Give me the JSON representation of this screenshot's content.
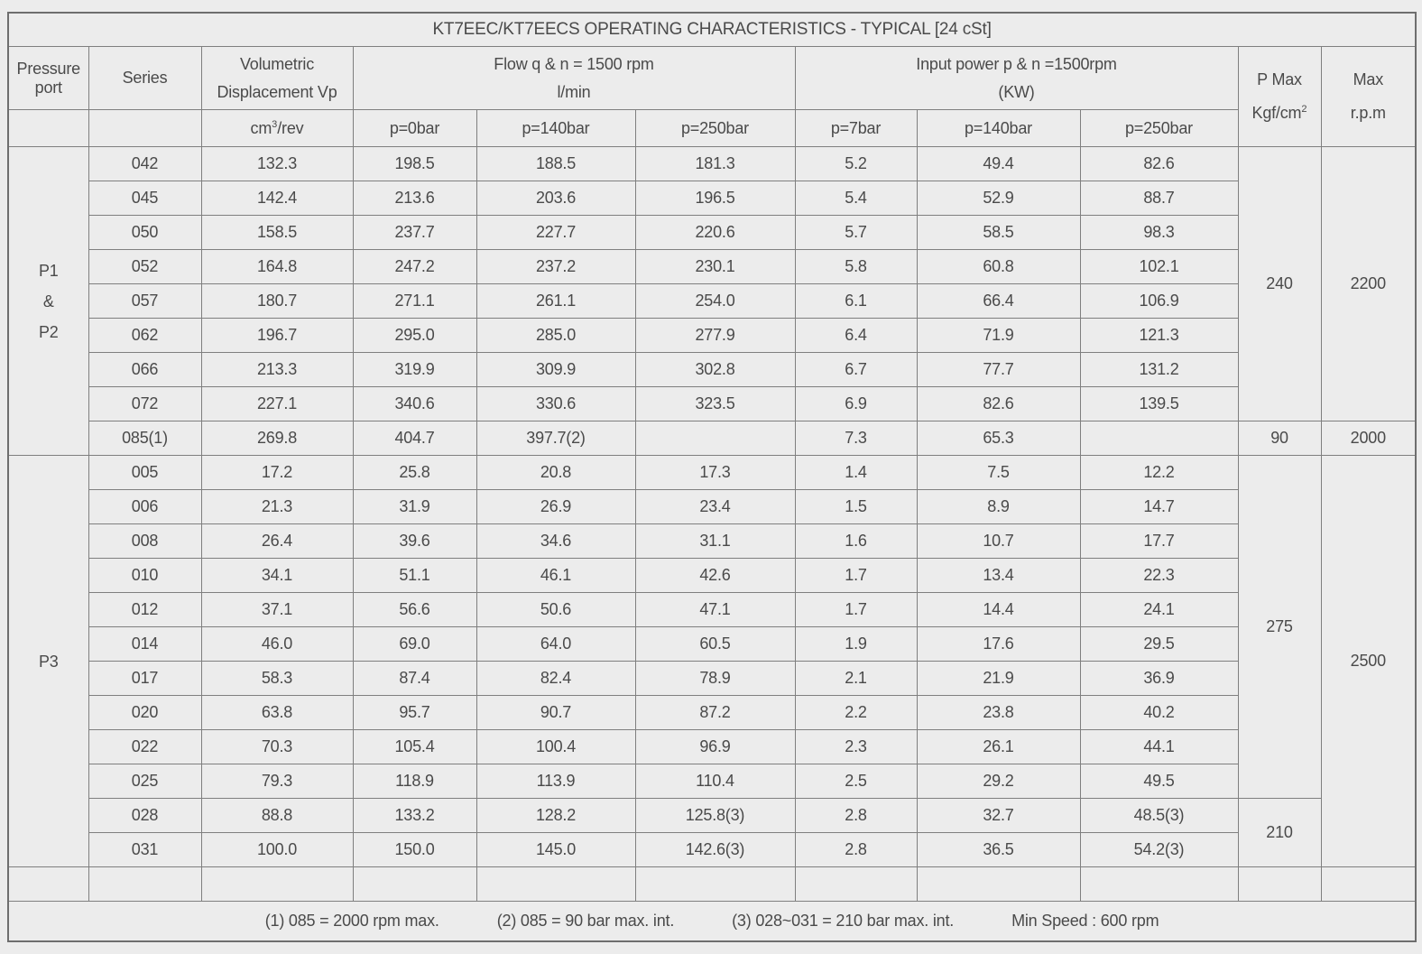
{
  "title": "KT7EEC/KT7EECS OPERATING CHARACTERISTICS - TYPICAL [24 cSt]",
  "colors": {
    "background": "#ececec",
    "grid_line": "#7f7f7f",
    "outer_border": "#6e6e6e",
    "text": "#4a4a4a"
  },
  "header": {
    "pressure_port": "Pressure port",
    "series": "Series",
    "displacement_line1": "Volumetric",
    "displacement_line2": "Displacement Vp",
    "vp_unit_pre": "cm",
    "vp_unit_sup": "3",
    "vp_unit_post": "/rev",
    "flow_line1": "Flow q & n = 1500 rpm",
    "flow_line2": "l/min",
    "power_line1": "Input power p & n =1500rpm",
    "power_line2": "(KW)",
    "flow_cols": [
      "p=0bar",
      "p=140bar",
      "p=250bar"
    ],
    "power_cols": [
      "p=7bar",
      "p=140bar",
      "p=250bar"
    ],
    "pmax_line1": "P Max",
    "pmax_unit_pre": "Kgf/cm",
    "pmax_unit_sup": "2",
    "rpm_line1": "Max",
    "rpm_line2": "r.p.m"
  },
  "sections": [
    {
      "port_lines": [
        "P1",
        "&",
        "P2"
      ],
      "rows": [
        {
          "series": "042",
          "vp": "132.3",
          "flow": [
            "198.5",
            "188.5",
            "181.3"
          ],
          "power": [
            "5.2",
            "49.4",
            "82.6"
          ]
        },
        {
          "series": "045",
          "vp": "142.4",
          "flow": [
            "213.6",
            "203.6",
            "196.5"
          ],
          "power": [
            "5.4",
            "52.9",
            "88.7"
          ]
        },
        {
          "series": "050",
          "vp": "158.5",
          "flow": [
            "237.7",
            "227.7",
            "220.6"
          ],
          "power": [
            "5.7",
            "58.5",
            "98.3"
          ]
        },
        {
          "series": "052",
          "vp": "164.8",
          "flow": [
            "247.2",
            "237.2",
            "230.1"
          ],
          "power": [
            "5.8",
            "60.8",
            "102.1"
          ]
        },
        {
          "series": "057",
          "vp": "180.7",
          "flow": [
            "271.1",
            "261.1",
            "254.0"
          ],
          "power": [
            "6.1",
            "66.4",
            "106.9"
          ]
        },
        {
          "series": "062",
          "vp": "196.7",
          "flow": [
            "295.0",
            "285.0",
            "277.9"
          ],
          "power": [
            "6.4",
            "71.9",
            "121.3"
          ]
        },
        {
          "series": "066",
          "vp": "213.3",
          "flow": [
            "319.9",
            "309.9",
            "302.8"
          ],
          "power": [
            "6.7",
            "77.7",
            "131.2"
          ]
        },
        {
          "series": "072",
          "vp": "227.1",
          "flow": [
            "340.6",
            "330.6",
            "323.5"
          ],
          "power": [
            "6.9",
            "82.6",
            "139.5"
          ]
        },
        {
          "series": "085(1)",
          "vp": "269.8",
          "flow": [
            "404.7",
            "397.7(2)",
            ""
          ],
          "power": [
            "7.3",
            "65.3",
            ""
          ]
        }
      ],
      "pmax_spans": [
        {
          "value": "240",
          "rows": 8
        },
        {
          "value": "90",
          "rows": 1
        }
      ],
      "rpm_spans": [
        {
          "value": "2200",
          "rows": 8
        },
        {
          "value": "2000",
          "rows": 1
        }
      ]
    },
    {
      "port_lines": [
        "P3"
      ],
      "rows": [
        {
          "series": "005",
          "vp": "17.2",
          "flow": [
            "25.8",
            "20.8",
            "17.3"
          ],
          "power": [
            "1.4",
            "7.5",
            "12.2"
          ]
        },
        {
          "series": "006",
          "vp": "21.3",
          "flow": [
            "31.9",
            "26.9",
            "23.4"
          ],
          "power": [
            "1.5",
            "8.9",
            "14.7"
          ]
        },
        {
          "series": "008",
          "vp": "26.4",
          "flow": [
            "39.6",
            "34.6",
            "31.1"
          ],
          "power": [
            "1.6",
            "10.7",
            "17.7"
          ]
        },
        {
          "series": "010",
          "vp": "34.1",
          "flow": [
            "51.1",
            "46.1",
            "42.6"
          ],
          "power": [
            "1.7",
            "13.4",
            "22.3"
          ]
        },
        {
          "series": "012",
          "vp": "37.1",
          "flow": [
            "56.6",
            "50.6",
            "47.1"
          ],
          "power": [
            "1.7",
            "14.4",
            "24.1"
          ]
        },
        {
          "series": "014",
          "vp": "46.0",
          "flow": [
            "69.0",
            "64.0",
            "60.5"
          ],
          "power": [
            "1.9",
            "17.6",
            "29.5"
          ]
        },
        {
          "series": "017",
          "vp": "58.3",
          "flow": [
            "87.4",
            "82.4",
            "78.9"
          ],
          "power": [
            "2.1",
            "21.9",
            "36.9"
          ]
        },
        {
          "series": "020",
          "vp": "63.8",
          "flow": [
            "95.7",
            "90.7",
            "87.2"
          ],
          "power": [
            "2.2",
            "23.8",
            "40.2"
          ]
        },
        {
          "series": "022",
          "vp": "70.3",
          "flow": [
            "105.4",
            "100.4",
            "96.9"
          ],
          "power": [
            "2.3",
            "26.1",
            "44.1"
          ]
        },
        {
          "series": "025",
          "vp": "79.3",
          "flow": [
            "118.9",
            "113.9",
            "110.4"
          ],
          "power": [
            "2.5",
            "29.2",
            "49.5"
          ]
        },
        {
          "series": "028",
          "vp": "88.8",
          "flow": [
            "133.2",
            "128.2",
            "125.8(3)"
          ],
          "power": [
            "2.8",
            "32.7",
            "48.5(3)"
          ]
        },
        {
          "series": "031",
          "vp": "100.0",
          "flow": [
            "150.0",
            "145.0",
            "142.6(3)"
          ],
          "power": [
            "2.8",
            "36.5",
            "54.2(3)"
          ]
        }
      ],
      "pmax_spans": [
        {
          "value": "275",
          "rows": 10
        },
        {
          "value": "210",
          "rows": 2
        }
      ],
      "rpm_spans": [
        {
          "value": "2500",
          "rows": 12
        }
      ]
    }
  ],
  "footnotes": [
    "(1) 085 = 2000 rpm max.",
    "(2) 085 = 90 bar max. int.",
    "(3) 028~031 = 210 bar max. int.",
    "Min Speed : 600 rpm"
  ]
}
